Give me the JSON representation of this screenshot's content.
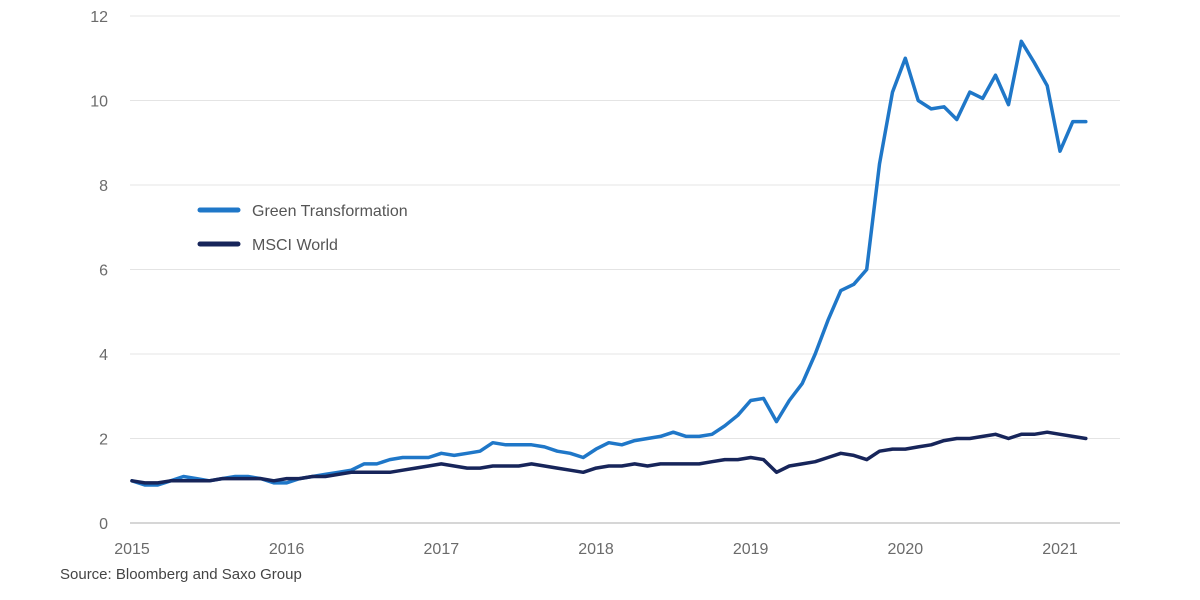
{
  "source_note": "Source: Bloomberg and Saxo Group",
  "chart_data": {
    "type": "line",
    "ylim": [
      0,
      12
    ],
    "yticks": [
      0,
      2,
      4,
      6,
      8,
      10,
      12
    ],
    "xlim": [
      2015,
      2021.35
    ],
    "xticks": [
      2015,
      2016,
      2017,
      2018,
      2019,
      2020,
      2021
    ],
    "grid": "horizontal",
    "legend_position": "left",
    "series": [
      {
        "name": "Green Transformation",
        "color": "#1f77c8",
        "x": [
          2015.0,
          2015.083,
          2015.167,
          2015.25,
          2015.333,
          2015.417,
          2015.5,
          2015.583,
          2015.667,
          2015.75,
          2015.833,
          2015.917,
          2016.0,
          2016.083,
          2016.167,
          2016.25,
          2016.333,
          2016.417,
          2016.5,
          2016.583,
          2016.667,
          2016.75,
          2016.833,
          2016.917,
          2017.0,
          2017.083,
          2017.167,
          2017.25,
          2017.333,
          2017.417,
          2017.5,
          2017.583,
          2017.667,
          2017.75,
          2017.833,
          2017.917,
          2018.0,
          2018.083,
          2018.167,
          2018.25,
          2018.333,
          2018.417,
          2018.5,
          2018.583,
          2018.667,
          2018.75,
          2018.833,
          2018.917,
          2019.0,
          2019.083,
          2019.167,
          2019.25,
          2019.333,
          2019.417,
          2019.5,
          2019.583,
          2019.667,
          2019.75,
          2019.833,
          2019.917,
          2020.0,
          2020.083,
          2020.167,
          2020.25,
          2020.333,
          2020.417,
          2020.5,
          2020.583,
          2020.667,
          2020.75,
          2020.833,
          2020.917,
          2021.0,
          2021.083,
          2021.167
        ],
        "values": [
          1.0,
          0.9,
          0.9,
          1.0,
          1.1,
          1.05,
          1.0,
          1.05,
          1.1,
          1.1,
          1.05,
          0.95,
          0.95,
          1.05,
          1.1,
          1.15,
          1.2,
          1.25,
          1.4,
          1.4,
          1.5,
          1.55,
          1.55,
          1.55,
          1.65,
          1.6,
          1.65,
          1.7,
          1.9,
          1.85,
          1.85,
          1.85,
          1.8,
          1.7,
          1.65,
          1.55,
          1.75,
          1.9,
          1.85,
          1.95,
          2.0,
          2.05,
          2.15,
          2.05,
          2.05,
          2.1,
          2.3,
          2.55,
          2.9,
          2.95,
          2.4,
          2.9,
          3.3,
          4.0,
          4.8,
          5.5,
          5.65,
          6.0,
          8.5,
          10.2,
          11.0,
          10.0,
          9.8,
          9.85,
          9.55,
          10.2,
          10.05,
          10.6,
          9.9,
          11.4,
          10.9,
          10.35,
          8.8,
          9.5,
          9.5
        ]
      },
      {
        "name": "MSCI World",
        "color": "#17255a",
        "x": [
          2015.0,
          2015.083,
          2015.167,
          2015.25,
          2015.333,
          2015.417,
          2015.5,
          2015.583,
          2015.667,
          2015.75,
          2015.833,
          2015.917,
          2016.0,
          2016.083,
          2016.167,
          2016.25,
          2016.333,
          2016.417,
          2016.5,
          2016.583,
          2016.667,
          2016.75,
          2016.833,
          2016.917,
          2017.0,
          2017.083,
          2017.167,
          2017.25,
          2017.333,
          2017.417,
          2017.5,
          2017.583,
          2017.667,
          2017.75,
          2017.833,
          2017.917,
          2018.0,
          2018.083,
          2018.167,
          2018.25,
          2018.333,
          2018.417,
          2018.5,
          2018.583,
          2018.667,
          2018.75,
          2018.833,
          2018.917,
          2019.0,
          2019.083,
          2019.167,
          2019.25,
          2019.333,
          2019.417,
          2019.5,
          2019.583,
          2019.667,
          2019.75,
          2019.833,
          2019.917,
          2020.0,
          2020.083,
          2020.167,
          2020.25,
          2020.333,
          2020.417,
          2020.5,
          2020.583,
          2020.667,
          2020.75,
          2020.833,
          2020.917,
          2021.0,
          2021.083,
          2021.167
        ],
        "values": [
          1.0,
          0.95,
          0.95,
          1.0,
          1.0,
          1.0,
          1.0,
          1.05,
          1.05,
          1.05,
          1.05,
          1.0,
          1.05,
          1.05,
          1.1,
          1.1,
          1.15,
          1.2,
          1.2,
          1.2,
          1.2,
          1.25,
          1.3,
          1.35,
          1.4,
          1.35,
          1.3,
          1.3,
          1.35,
          1.35,
          1.35,
          1.4,
          1.35,
          1.3,
          1.25,
          1.2,
          1.3,
          1.35,
          1.35,
          1.4,
          1.35,
          1.4,
          1.4,
          1.4,
          1.4,
          1.45,
          1.5,
          1.5,
          1.55,
          1.5,
          1.2,
          1.35,
          1.4,
          1.45,
          1.55,
          1.65,
          1.6,
          1.5,
          1.7,
          1.75,
          1.75,
          1.8,
          1.85,
          1.95,
          2.0,
          2.0,
          2.05,
          2.1,
          2.0,
          2.1,
          2.1,
          2.15,
          2.1,
          2.05,
          2.0
        ]
      }
    ]
  }
}
